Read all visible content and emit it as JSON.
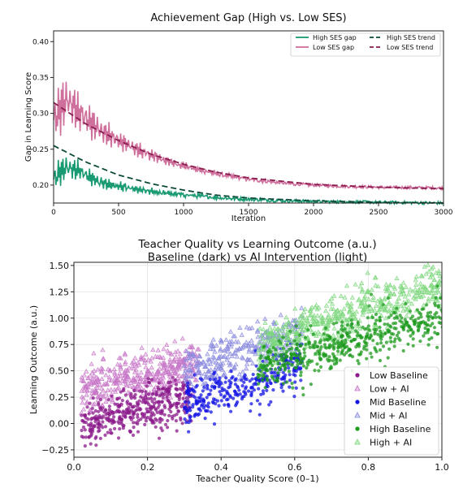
{
  "chart_data": [
    {
      "type": "line",
      "title": "Achievement Gap (High vs. Low SES)",
      "xlabel": "Iteration",
      "ylabel": "Gap in Learning Score",
      "xlim": [
        0,
        3000
      ],
      "ylim": [
        0.175,
        0.415
      ],
      "xticks": [
        "0",
        "500",
        "1000",
        "1500",
        "2000",
        "2500",
        "3000"
      ],
      "xtick_values": [
        0,
        500,
        1000,
        1500,
        2000,
        2500,
        3000
      ],
      "yticks": [
        "0.20",
        "0.25",
        "0.30",
        "0.35",
        "0.40"
      ],
      "ytick_values": [
        0.2,
        0.25,
        0.3,
        0.35,
        0.4
      ],
      "legend_position": "top-right",
      "grid": false,
      "series": [
        {
          "name": "High SES gap",
          "color": "#1a9a73",
          "style": "solid",
          "x": [
            0,
            100,
            200,
            300,
            400,
            500,
            700,
            900,
            1100,
            1300,
            1500,
            1800,
            2100,
            2500,
            3000
          ],
          "y": [
            0.21,
            0.225,
            0.22,
            0.208,
            0.202,
            0.198,
            0.192,
            0.188,
            0.185,
            0.182,
            0.18,
            0.178,
            0.177,
            0.176,
            0.175
          ]
        },
        {
          "name": "Low SES gap",
          "color": "#cf6f9c",
          "style": "solid",
          "x": [
            0,
            100,
            200,
            300,
            400,
            500,
            700,
            900,
            1100,
            1300,
            1500,
            1800,
            2100,
            2500,
            3000
          ],
          "y": [
            0.29,
            0.32,
            0.3,
            0.285,
            0.272,
            0.262,
            0.245,
            0.232,
            0.222,
            0.214,
            0.208,
            0.202,
            0.199,
            0.197,
            0.196
          ]
        },
        {
          "name": "High SES trend",
          "color": "#0b4a3a",
          "style": "dashed",
          "x": [
            0,
            250,
            500,
            750,
            1000,
            1250,
            1500,
            2000,
            2500,
            3000
          ],
          "y": [
            0.255,
            0.232,
            0.214,
            0.202,
            0.193,
            0.186,
            0.182,
            0.178,
            0.176,
            0.175
          ]
        },
        {
          "name": "Low SES trend",
          "color": "#8a1d4f",
          "style": "dashed",
          "x": [
            0,
            250,
            500,
            750,
            1000,
            1250,
            1500,
            2000,
            2500,
            3000
          ],
          "y": [
            0.315,
            0.285,
            0.262,
            0.243,
            0.229,
            0.218,
            0.21,
            0.201,
            0.197,
            0.195
          ]
        }
      ]
    },
    {
      "type": "scatter",
      "title": "Teacher Quality vs Learning Outcome (a.u.)",
      "subtitle": "Baseline (dark) vs AI Intervention (light)",
      "xlabel": "Teacher Quality Score (0–1)",
      "ylabel": "Learning Outcome (a.u.)",
      "xlim": [
        0.0,
        1.0
      ],
      "ylim": [
        -0.32,
        1.53
      ],
      "xticks": [
        "0.0",
        "0.2",
        "0.4",
        "0.6",
        "0.8",
        "1.0"
      ],
      "xtick_values": [
        0.0,
        0.2,
        0.4,
        0.6,
        0.8,
        1.0
      ],
      "yticks": [
        "−0.25",
        "0.00",
        "0.25",
        "0.50",
        "0.75",
        "1.00",
        "1.25",
        "1.50"
      ],
      "ytick_values": [
        -0.25,
        0.0,
        0.25,
        0.5,
        0.75,
        1.0,
        1.25,
        1.5
      ],
      "legend_position": "bottom-right",
      "grid": true,
      "series": [
        {
          "name": "Low Baseline",
          "color": "#8b1a8b",
          "marker": "circle",
          "x": [
            0.02,
            0.06,
            0.1,
            0.15,
            0.2,
            0.25,
            0.3,
            0.08,
            0.18,
            0.28
          ],
          "y": [
            0.02,
            0.05,
            0.1,
            0.15,
            0.2,
            0.25,
            0.3,
            -0.1,
            0.0,
            0.12
          ]
        },
        {
          "name": "Low + AI",
          "color": "#c878c8",
          "marker": "triangle",
          "x": [
            0.02,
            0.06,
            0.1,
            0.15,
            0.2,
            0.25,
            0.3,
            0.05,
            0.22,
            0.32
          ],
          "y": [
            0.22,
            0.28,
            0.32,
            0.38,
            0.42,
            0.48,
            0.52,
            0.5,
            0.62,
            0.55
          ]
        },
        {
          "name": "Mid Baseline",
          "color": "#1414e6",
          "marker": "circle",
          "x": [
            0.3,
            0.35,
            0.4,
            0.45,
            0.5,
            0.55,
            0.6,
            0.38,
            0.48
          ],
          "y": [
            0.22,
            0.28,
            0.32,
            0.38,
            0.42,
            0.48,
            0.55,
            0.15,
            0.25
          ]
        },
        {
          "name": "Mid + AI",
          "color": "#8a8adf",
          "marker": "triangle",
          "x": [
            0.3,
            0.35,
            0.4,
            0.45,
            0.5,
            0.55,
            0.6,
            0.42,
            0.52
          ],
          "y": [
            0.45,
            0.52,
            0.58,
            0.62,
            0.68,
            0.74,
            0.8,
            0.75,
            0.85
          ]
        },
        {
          "name": "High Baseline",
          "color": "#1c9a1c",
          "marker": "circle",
          "x": [
            0.5,
            0.55,
            0.6,
            0.65,
            0.7,
            0.75,
            0.8,
            0.85,
            0.9,
            0.95,
            1.0
          ],
          "y": [
            0.5,
            0.58,
            0.62,
            0.68,
            0.72,
            0.78,
            0.82,
            0.88,
            0.92,
            0.98,
            1.02
          ]
        },
        {
          "name": "High + AI",
          "color": "#7ed87e",
          "marker": "triangle",
          "x": [
            0.5,
            0.55,
            0.6,
            0.65,
            0.7,
            0.75,
            0.8,
            0.85,
            0.9,
            0.95,
            1.0
          ],
          "y": [
            0.72,
            0.8,
            0.85,
            0.92,
            0.98,
            1.05,
            1.1,
            1.15,
            1.2,
            1.25,
            1.3
          ]
        }
      ]
    }
  ]
}
